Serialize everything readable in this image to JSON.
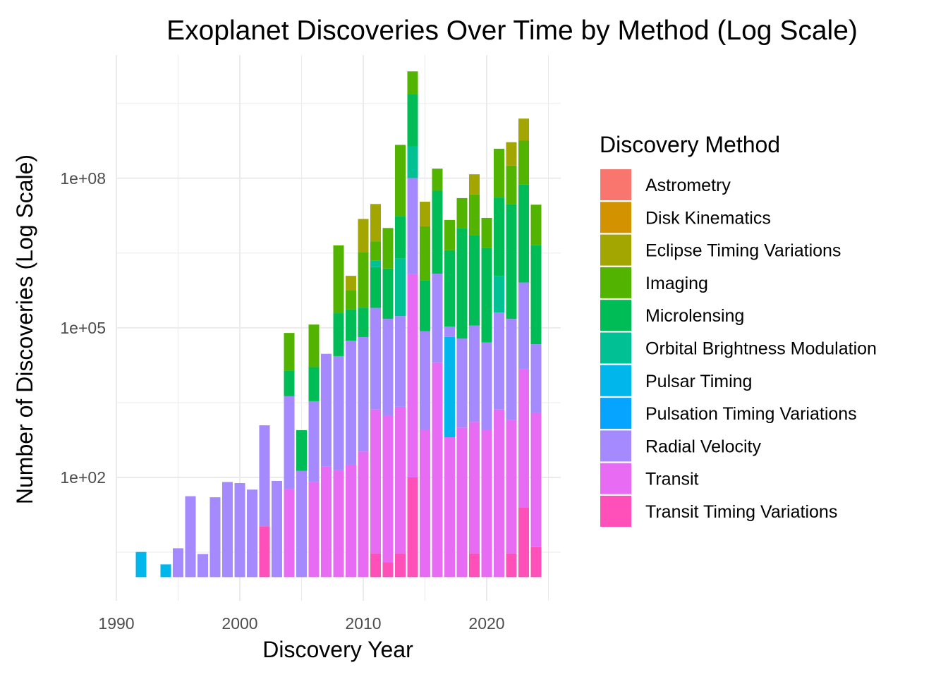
{
  "chart_data": {
    "type": "bar",
    "stacked": true,
    "title": "Exoplanet Discoveries Over Time by Method (Log Scale)",
    "xlabel": "Discovery Year",
    "ylabel": "Number of Discoveries (Log Scale)",
    "y_scale": "log10",
    "ylim": [
      0.6,
      100000000000
    ],
    "xlim": [
      1990,
      2025
    ],
    "x_ticks": [
      "1990",
      "2000",
      "2010",
      "2020"
    ],
    "x_tick_values": [
      1990,
      2000,
      2010,
      2020
    ],
    "y_ticks": [
      "1e+02",
      "1e+05",
      "1e+08"
    ],
    "y_tick_values": [
      100,
      100000,
      100000000
    ],
    "grid": true,
    "legend": {
      "title": "Discovery Method",
      "position": "right"
    },
    "series": [
      {
        "name": "Astrometry",
        "color": "#F8766D"
      },
      {
        "name": "Disk Kinematics",
        "color": "#D39200"
      },
      {
        "name": "Eclipse Timing Variations",
        "color": "#A3A500"
      },
      {
        "name": "Imaging",
        "color": "#53B400"
      },
      {
        "name": "Microlensing",
        "color": "#00BC56"
      },
      {
        "name": "Orbital Brightness Modulation",
        "color": "#00C094"
      },
      {
        "name": "Pulsar Timing",
        "color": "#00B6EB"
      },
      {
        "name": "Pulsation Timing Variations",
        "color": "#06A4FF"
      },
      {
        "name": "Radial Velocity",
        "color": "#A58AFF"
      },
      {
        "name": "Transit",
        "color": "#E76BF3"
      },
      {
        "name": "Transit Timing Variations",
        "color": "#FF4FB8"
      }
    ],
    "bars": [
      {
        "year": 1992,
        "segments": [
          [
            "Pulsar Timing",
            3.2
          ]
        ]
      },
      {
        "year": 1994,
        "segments": [
          [
            "Pulsar Timing",
            1.8
          ]
        ]
      },
      {
        "year": 1995,
        "segments": [
          [
            "Radial Velocity",
            3.8
          ]
        ]
      },
      {
        "year": 1996,
        "segments": [
          [
            "Radial Velocity",
            42
          ]
        ]
      },
      {
        "year": 1997,
        "segments": [
          [
            "Radial Velocity",
            2.9
          ]
        ]
      },
      {
        "year": 1998,
        "segments": [
          [
            "Radial Velocity",
            40
          ]
        ]
      },
      {
        "year": 1999,
        "segments": [
          [
            "Radial Velocity",
            81
          ]
        ]
      },
      {
        "year": 2000,
        "segments": [
          [
            "Radial Velocity",
            77
          ]
        ]
      },
      {
        "year": 2001,
        "segments": [
          [
            "Radial Velocity",
            57
          ]
        ]
      },
      {
        "year": 2002,
        "segments": [
          [
            "Transit Timing Variations",
            10.5
          ],
          [
            "Radial Velocity",
            1100
          ]
        ]
      },
      {
        "year": 2003,
        "segments": [
          [
            "Radial Velocity",
            85
          ]
        ]
      },
      {
        "year": 2004,
        "segments": [
          [
            "Transit",
            58
          ],
          [
            "Radial Velocity",
            4200
          ],
          [
            "Microlensing",
            9800
          ],
          [
            "Imaging",
            65000
          ]
        ]
      },
      {
        "year": 2005,
        "segments": [
          [
            "Radial Velocity",
            135
          ],
          [
            "Microlensing",
            750
          ]
        ]
      },
      {
        "year": 2006,
        "segments": [
          [
            "Transit",
            80
          ],
          [
            "Radial Velocity",
            3300
          ],
          [
            "Microlensing",
            13000
          ],
          [
            "Imaging",
            100000
          ]
        ]
      },
      {
        "year": 2007,
        "segments": [
          [
            "Transit",
            165
          ],
          [
            "Radial Velocity",
            30000
          ]
        ]
      },
      {
        "year": 2008,
        "segments": [
          [
            "Transit",
            140
          ],
          [
            "Radial Velocity",
            27000
          ],
          [
            "Microlensing",
            170000
          ],
          [
            "Imaging",
            4300000
          ]
        ]
      },
      {
        "year": 2009,
        "segments": [
          [
            "Transit",
            180
          ],
          [
            "Radial Velocity",
            55000
          ],
          [
            "Microlensing",
            180000
          ],
          [
            "Imaging",
            340000
          ],
          [
            "Eclipse Timing Variations",
            530000
          ]
        ]
      },
      {
        "year": 2010,
        "segments": [
          [
            "Transit",
            330
          ],
          [
            "Radial Velocity",
            65000
          ],
          [
            "Microlensing",
            190000
          ],
          [
            "Imaging",
            3000000
          ],
          [
            "Eclipse Timing Variations",
            12000000
          ]
        ]
      },
      {
        "year": 2011,
        "segments": [
          [
            "Transit Timing Variations",
            3.0
          ],
          [
            "Transit",
            2300
          ],
          [
            "Radial Velocity",
            250000
          ],
          [
            "Microlensing",
            1400000
          ],
          [
            "Orbital Brightness Modulation",
            600000
          ],
          [
            "Imaging",
            3200000
          ],
          [
            "Eclipse Timing Variations",
            25000000
          ]
        ]
      },
      {
        "year": 2012,
        "segments": [
          [
            "Transit Timing Variations",
            2.0
          ],
          [
            "Transit",
            1700
          ],
          [
            "Radial Velocity",
            150000
          ],
          [
            "Microlensing",
            1400000
          ],
          [
            "Imaging",
            8500000
          ]
        ]
      },
      {
        "year": 2013,
        "segments": [
          [
            "Transit Timing Variations",
            3.0
          ],
          [
            "Transit",
            2600
          ],
          [
            "Radial Velocity",
            170000
          ],
          [
            "Orbital Brightness Modulation",
            2300000
          ],
          [
            "Microlensing",
            15000000
          ],
          [
            "Imaging",
            450000000
          ]
        ]
      },
      {
        "year": 2014,
        "segments": [
          [
            "Transit Timing Variations",
            100
          ],
          [
            "Transit",
            1200000
          ],
          [
            "Radial Velocity",
            100000000
          ],
          [
            "Orbital Brightness Modulation",
            330000000
          ],
          [
            "Microlensing",
            4500000000
          ],
          [
            "Imaging",
            9000000000
          ]
        ]
      },
      {
        "year": 2015,
        "segments": [
          [
            "Transit",
            900
          ],
          [
            "Radial Velocity",
            85000
          ],
          [
            "Microlensing",
            800000
          ],
          [
            "Imaging",
            10000000
          ],
          [
            "Eclipse Timing Variations",
            23000000
          ]
        ]
      },
      {
        "year": 2016,
        "segments": [
          [
            "Transit",
            20000
          ],
          [
            "Radial Velocity",
            1200000
          ],
          [
            "Microlensing",
            55000000
          ],
          [
            "Imaging",
            100000000
          ]
        ]
      },
      {
        "year": 2017,
        "segments": [
          [
            "Transit",
            640
          ],
          [
            "Pulsar Timing",
            65000
          ],
          [
            "Radial Velocity",
            40000
          ],
          [
            "Microlensing",
            3500000
          ],
          [
            "Imaging",
            11000000
          ]
        ]
      },
      {
        "year": 2018,
        "segments": [
          [
            "Transit",
            1000
          ],
          [
            "Radial Velocity",
            60000
          ],
          [
            "Microlensing",
            10000000
          ],
          [
            "Imaging",
            30000000
          ]
        ]
      },
      {
        "year": 2019,
        "segments": [
          [
            "Transit Timing Variations",
            3.0
          ],
          [
            "Transit",
            1300
          ],
          [
            "Radial Velocity",
            110000
          ],
          [
            "Microlensing",
            7000000
          ],
          [
            "Imaging",
            40000000
          ],
          [
            "Eclipse Timing Variations",
            73000000
          ]
        ]
      },
      {
        "year": 2020,
        "segments": [
          [
            "Transit",
            900
          ],
          [
            "Radial Velocity",
            50000
          ],
          [
            "Microlensing",
            4000000
          ],
          [
            "Imaging",
            12000000
          ]
        ]
      },
      {
        "year": 2021,
        "segments": [
          [
            "Transit",
            2300
          ],
          [
            "Radial Velocity",
            200000
          ],
          [
            "Orbital Brightness Modulation",
            900000
          ],
          [
            "Microlensing",
            40000000
          ],
          [
            "Imaging",
            350000000
          ]
        ]
      },
      {
        "year": 2022,
        "segments": [
          [
            "Transit Timing Variations",
            3.0
          ],
          [
            "Transit",
            1400
          ],
          [
            "Radial Velocity",
            150000
          ],
          [
            "Microlensing",
            30000000
          ],
          [
            "Imaging",
            150000000
          ],
          [
            "Eclipse Timing Variations",
            350000000
          ]
        ]
      },
      {
        "year": 2023,
        "segments": [
          [
            "Transit Timing Variations",
            25
          ],
          [
            "Transit",
            15000
          ],
          [
            "Radial Velocity",
            800000
          ],
          [
            "Microlensing",
            75000000
          ],
          [
            "Imaging",
            500000000
          ],
          [
            "Eclipse Timing Variations",
            1000000000
          ]
        ]
      },
      {
        "year": 2024,
        "segments": [
          [
            "Transit Timing Variations",
            4.0
          ],
          [
            "Transit",
            2000
          ],
          [
            "Radial Velocity",
            45000
          ],
          [
            "Microlensing",
            4500000
          ],
          [
            "Imaging",
            25000000
          ]
        ]
      }
    ]
  }
}
